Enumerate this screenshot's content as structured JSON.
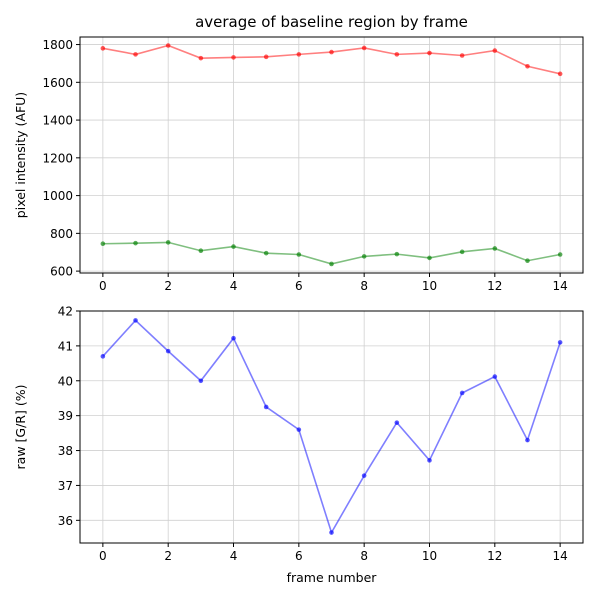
{
  "chart_data": [
    {
      "type": "line",
      "title": "average of baseline region by frame",
      "xlabel": "",
      "ylabel": "pixel intensity (AFU)",
      "x": [
        0,
        1,
        2,
        3,
        4,
        5,
        6,
        7,
        8,
        9,
        10,
        11,
        12,
        13,
        14
      ],
      "xticks": [
        0,
        2,
        4,
        6,
        8,
        10,
        12,
        14
      ],
      "yticks": [
        600,
        800,
        1000,
        1200,
        1400,
        1600,
        1800
      ],
      "xlim": [
        -0.7,
        14.7
      ],
      "ylim": [
        590,
        1840
      ],
      "grid": true,
      "series": [
        {
          "color": "#ff0000",
          "values": [
            1780,
            1748,
            1795,
            1728,
            1732,
            1735,
            1748,
            1760,
            1782,
            1748,
            1755,
            1742,
            1768,
            1685,
            1645
          ]
        },
        {
          "color": "#008000",
          "values": [
            745,
            748,
            752,
            708,
            730,
            695,
            688,
            638,
            678,
            690,
            670,
            702,
            720,
            655,
            688
          ]
        }
      ]
    },
    {
      "type": "line",
      "title": "",
      "xlabel": "frame number",
      "ylabel": "raw [G/R] (%)",
      "x": [
        0,
        1,
        2,
        3,
        4,
        5,
        6,
        7,
        8,
        9,
        10,
        11,
        12,
        13,
        14
      ],
      "xticks": [
        0,
        2,
        4,
        6,
        8,
        10,
        12,
        14
      ],
      "yticks": [
        36,
        37,
        38,
        39,
        40,
        41,
        42
      ],
      "xlim": [
        -0.7,
        14.7
      ],
      "ylim": [
        35.35,
        42.0
      ],
      "grid": true,
      "series": [
        {
          "color": "#0000ff",
          "values": [
            40.7,
            41.73,
            40.85,
            40.0,
            41.22,
            39.25,
            38.6,
            35.65,
            37.28,
            38.8,
            37.72,
            39.65,
            40.12,
            38.3,
            41.1
          ]
        }
      ]
    }
  ]
}
